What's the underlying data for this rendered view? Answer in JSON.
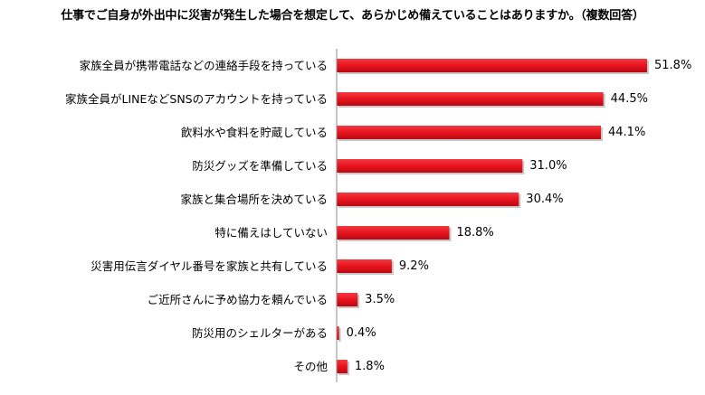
{
  "chart_data": {
    "type": "bar",
    "orientation": "horizontal",
    "title": "仕事でご自身が外出中に災害が発生した場合を想定して、あらかじめ備えていることはありますか。（複数回答）",
    "categories": [
      "家族全員が携帯電話などの連絡手段を持っている",
      "家族全員がLINEなどSNSのアカウントを持っている",
      "飲料水や食料を貯蔵している",
      "防災グッズを準備している",
      "家族と集合場所を決めている",
      "特に備えはしていない",
      "災害用伝言ダイヤル番号を家族と共有している",
      "ご近所さんに予め協力を頼んでいる",
      "防災用のシェルターがある",
      "その他"
    ],
    "values": [
      51.8,
      44.5,
      44.1,
      31.0,
      30.4,
      18.8,
      9.2,
      3.5,
      0.4,
      1.8
    ],
    "value_labels": [
      "51.8%",
      "44.5%",
      "44.1%",
      "31.0%",
      "30.4%",
      "18.8%",
      "9.2%",
      "3.5%",
      "0.4%",
      "1.8%"
    ],
    "xlim": [
      0,
      60
    ],
    "bar_color": "#e8141e",
    "axis_color": "#8c8c8c",
    "legend": "none",
    "grid": false
  }
}
